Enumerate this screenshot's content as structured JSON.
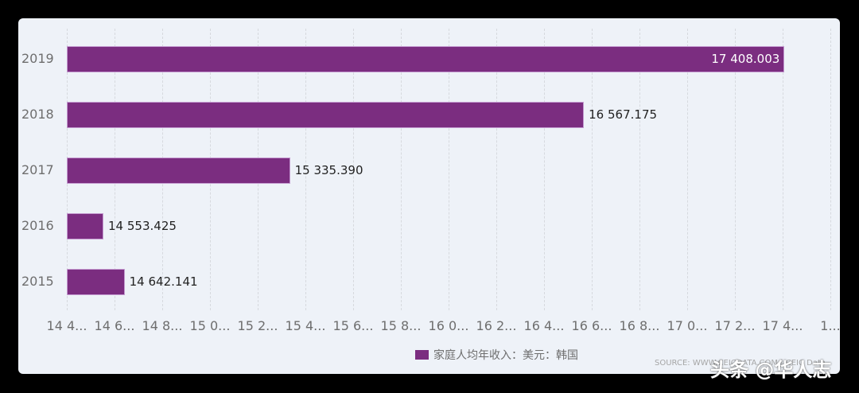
{
  "chart_data": {
    "type": "bar",
    "orientation": "horizontal",
    "title": "",
    "xlabel": "",
    "ylabel": "",
    "categories": [
      "2019",
      "2018",
      "2017",
      "2016",
      "2015"
    ],
    "series": [
      {
        "name": "家庭人均年收入：美元：韩国",
        "color": "#7b2d80",
        "values": [
          17408.003,
          16567.175,
          15335.39,
          14553.425,
          14642.141
        ],
        "labels": [
          "17 408.003",
          "16 567.175",
          "15 335.390",
          "14 553.425",
          "14 642.141"
        ]
      }
    ],
    "xlim": [
      14400,
      17600
    ],
    "x_ticks": [
      14400,
      14600,
      14800,
      15000,
      15200,
      15400,
      15600,
      15800,
      16000,
      16200,
      16400,
      16600,
      16800,
      17000,
      17200,
      17400,
      17600
    ],
    "x_tick_labels": [
      "14 4...",
      "14 6...",
      "14 8...",
      "15 0...",
      "15 2...",
      "15 4...",
      "15 6...",
      "15 8...",
      "16 0...",
      "16 2...",
      "16 4...",
      "16 6...",
      "16 8...",
      "17 0...",
      "17 2...",
      "17 4...",
      "1..."
    ],
    "grid": true,
    "legend_position": "bottom"
  },
  "legend": {
    "label": "家庭人均年收入：美元：韩国",
    "color": "#7b2d80"
  },
  "source": "SOURCE: WWW.CEICDATA.COM | CEIC Data",
  "watermark": "头条 @华人志"
}
